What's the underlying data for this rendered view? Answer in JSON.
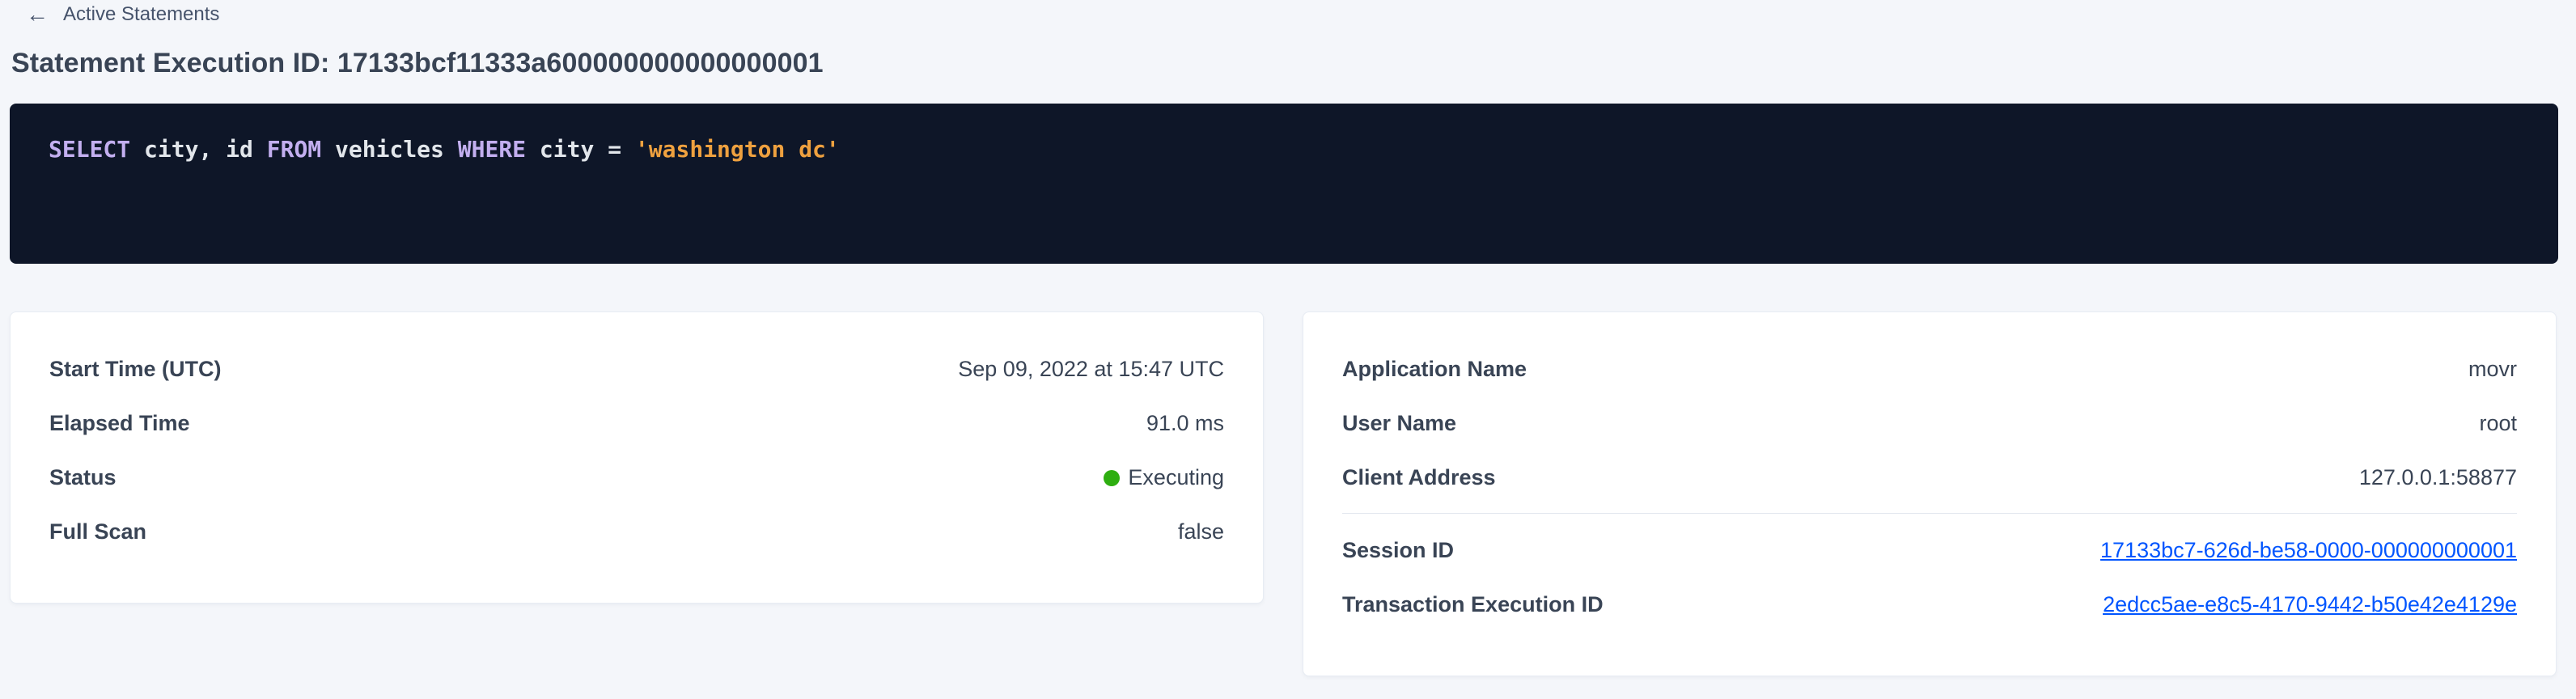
{
  "colors": {
    "accent_link": "#0055ff",
    "status_green": "#2eae10",
    "sql_keyword": "#c3aff0",
    "sql_string": "#efa13f",
    "sql_plain": "#e2e6eb",
    "sql_bg": "#0e1628"
  },
  "header": {
    "back_icon": "←",
    "back_label": "Active Statements",
    "title": "Statement Execution ID: 17133bcf11333a600000000000000001"
  },
  "sql": {
    "tokens": [
      {
        "type": "keyword",
        "text": "SELECT"
      },
      {
        "type": "plain",
        "text": " city, id "
      },
      {
        "type": "keyword",
        "text": "FROM"
      },
      {
        "type": "plain",
        "text": " vehicles "
      },
      {
        "type": "keyword",
        "text": "WHERE"
      },
      {
        "type": "plain",
        "text": " city = "
      },
      {
        "type": "string",
        "text": "'washington dc'"
      }
    ],
    "full_text": "SELECT city, id FROM vehicles WHERE city = 'washington dc'"
  },
  "details_left": {
    "rows": [
      {
        "label": "Start Time (UTC)",
        "value": "Sep 09, 2022 at 15:47 UTC"
      },
      {
        "label": "Elapsed Time",
        "value": "91.0 ms"
      },
      {
        "label": "Status",
        "value": "Executing"
      },
      {
        "label": "Full Scan",
        "value": "false"
      }
    ]
  },
  "details_right": {
    "rows": [
      {
        "label": "Application Name",
        "value": "movr"
      },
      {
        "label": "User Name",
        "value": "root"
      },
      {
        "label": "Client Address",
        "value": "127.0.0.1:58877"
      },
      {
        "label": "Session ID",
        "value": "17133bc7-626d-be58-0000-000000000001"
      },
      {
        "label": "Transaction Execution ID",
        "value": "2edcc5ae-e8c5-4170-9442-b50e42e4129e"
      }
    ]
  }
}
